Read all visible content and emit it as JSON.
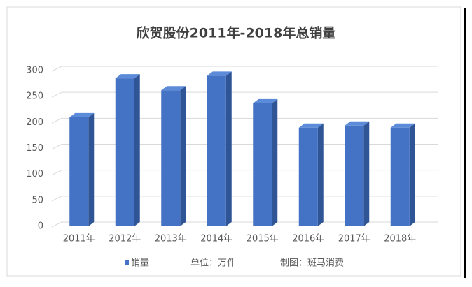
{
  "chart_data": {
    "type": "bar3d",
    "title": "欣贺股份2011年-2018年总销量",
    "categories": [
      "2011年",
      "2012年",
      "2013年",
      "2014年",
      "2015年",
      "2016年",
      "2017年",
      "2018年"
    ],
    "series": [
      {
        "name": "销量",
        "color": "#4472c4",
        "values": [
          210,
          285,
          262,
          290,
          237,
          190,
          194,
          190
        ]
      }
    ],
    "ylim": [
      0,
      300
    ],
    "yticks": [
      0,
      50,
      100,
      150,
      200,
      250,
      300
    ],
    "grid": true,
    "annotations": [
      "单位：万件",
      "制图：斑马消费"
    ]
  }
}
